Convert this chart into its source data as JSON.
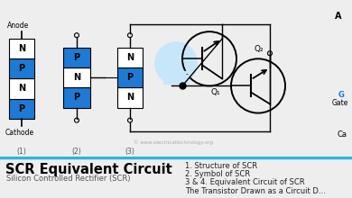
{
  "title": "SCR Equivalent Circuit",
  "subtitle": "Silicon Controlled Rectifier (SCR)",
  "legend_items": [
    "1. Structure of SCR",
    "2. Symbol of SCR",
    "3 & 4. Equivalent Circuit of SCR",
    "The Transistor Drawn as a Circuit D..."
  ],
  "pnpn_colors": {
    "P": "#1e7ad4",
    "N": "#ffffff"
  },
  "background_top": "#eeeeee",
  "background_bottom": "#ffffff",
  "divider_color": "#29b6d8",
  "text_color_title": "#000000",
  "text_color_subtitle": "#555555",
  "text_color_legend": "#222222",
  "gate_color": "#1e7ad4",
  "watermark": "© www.electricaltechnology.org",
  "fig_width": 3.9,
  "fig_height": 2.2,
  "dpi": 100
}
